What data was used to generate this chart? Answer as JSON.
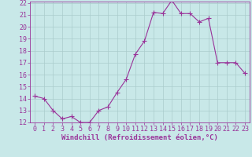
{
  "x": [
    0,
    1,
    2,
    3,
    4,
    5,
    6,
    7,
    8,
    9,
    10,
    11,
    12,
    13,
    14,
    15,
    16,
    17,
    18,
    19,
    20,
    21,
    22,
    23
  ],
  "y": [
    14.2,
    14.0,
    13.0,
    12.3,
    12.5,
    12.0,
    12.0,
    13.0,
    13.3,
    14.5,
    15.6,
    17.7,
    18.8,
    21.2,
    21.1,
    22.2,
    21.1,
    21.1,
    20.4,
    20.7,
    17.0,
    17.0,
    17.0,
    16.1
  ],
  "line_color": "#993399",
  "marker": "+",
  "marker_size": 4,
  "bg_color": "#c8e8e8",
  "grid_color": "#aacccc",
  "xlabel": "Windchill (Refroidissement éolien,°C)",
  "xlabel_fontsize": 6.5,
  "tick_fontsize": 6.0,
  "ylim": [
    12,
    22
  ],
  "yticks": [
    12,
    13,
    14,
    15,
    16,
    17,
    18,
    19,
    20,
    21,
    22
  ],
  "xlim": [
    -0.5,
    23.5
  ],
  "xticks": [
    0,
    1,
    2,
    3,
    4,
    5,
    6,
    7,
    8,
    9,
    10,
    11,
    12,
    13,
    14,
    15,
    16,
    17,
    18,
    19,
    20,
    21,
    22,
    23
  ]
}
